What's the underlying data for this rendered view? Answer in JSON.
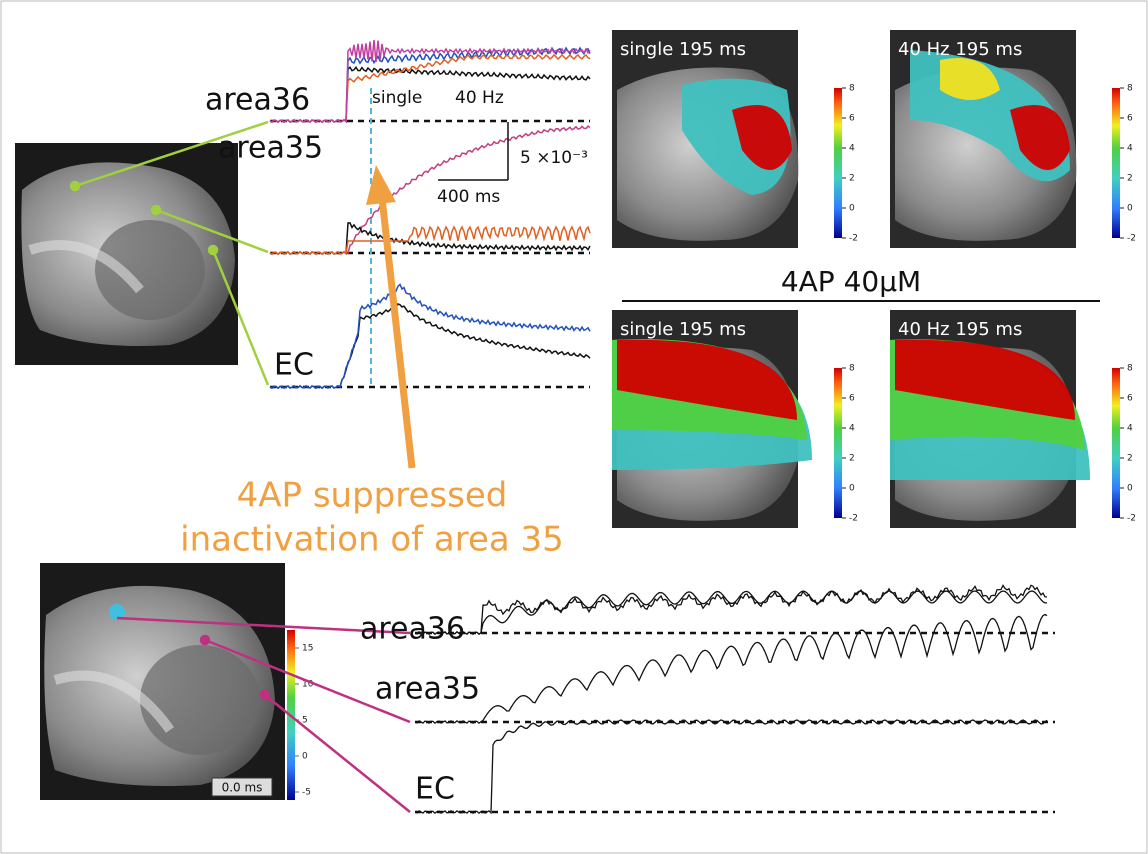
{
  "top_traces": {
    "labels": [
      "area36",
      "area35",
      "EC"
    ],
    "legend": [
      "single",
      "40 Hz"
    ],
    "scale_y": "5 ×10⁻³",
    "scale_x": "400 ms"
  },
  "annotation": [
    "4AP suppressed",
    "inactivation of area 35"
  ],
  "condition_label": "4AP 40μM",
  "panels": [
    {
      "title": "single 195 ms"
    },
    {
      "title": "40 Hz 195 ms"
    },
    {
      "title": "single 195 ms"
    },
    {
      "title": "40 Hz 195 ms"
    }
  ],
  "colorbar_ticks": [
    8,
    6,
    4,
    2,
    0,
    -2
  ],
  "bottom": {
    "labels": [
      "area36",
      "area35",
      "EC"
    ],
    "colorbar_ticks": [
      15,
      10,
      5,
      0,
      -5
    ],
    "time_label": "0.0 ms"
  }
}
